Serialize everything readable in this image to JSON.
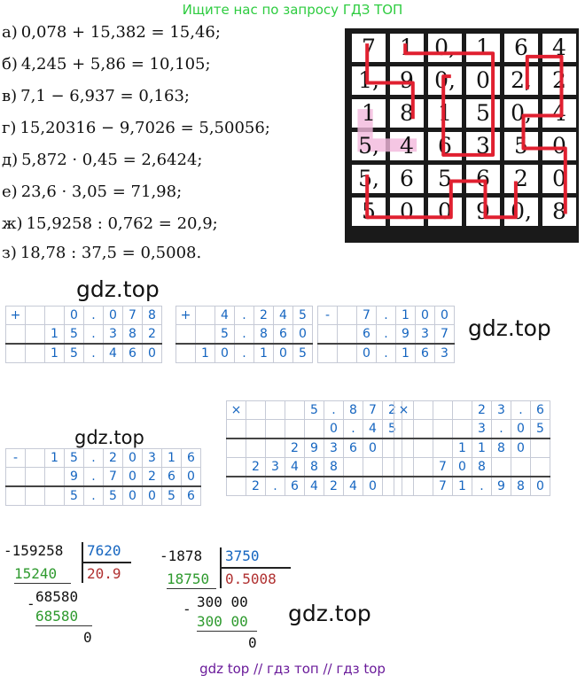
{
  "header_note": "Ищите нас по запросу ГДЗ ТОП",
  "equations": [
    {
      "label": "а)",
      "text": "0,078 + 15,382 = 15,46;"
    },
    {
      "label": "б)",
      "text": "4,245 + 5,86 = 10,105;"
    },
    {
      "label": "в)",
      "text": "7,1 − 6,937 = 0,163;"
    },
    {
      "label": "г)",
      "text": "15,20316 − 9,7026 = 5,50056;"
    },
    {
      "label": "д)",
      "text": "5,872 · 0,45 = 2,6424;"
    },
    {
      "label": "е)",
      "text": "23,6 · 3,05 = 71,98;"
    },
    {
      "label": "ж)",
      "text": "15,9258 : 0,762 = 20,9;"
    },
    {
      "label": "з)",
      "text": "18,78 : 37,5 = 0,5008."
    }
  ],
  "puzzle": {
    "rows": [
      [
        "7",
        "1",
        "0,",
        "1",
        "6",
        "4"
      ],
      [
        "1,",
        "9",
        "0,",
        "0",
        "2,",
        "2"
      ],
      [
        "1",
        "8",
        "1",
        "5",
        "0,",
        "4"
      ],
      [
        "5,",
        "4",
        "6",
        "3",
        "5",
        "0"
      ],
      [
        "5,",
        "6",
        "5",
        "6",
        "2",
        "0"
      ],
      [
        "5",
        "0",
        "0",
        "9",
        "0,",
        "8"
      ]
    ],
    "path_color": "#e02030",
    "highlight_color": "#f3b8dc"
  },
  "watermarks": [
    "gdz.top",
    "gdz.top",
    "gdz.top",
    "gdz.top"
  ],
  "column_ops": [
    {
      "op": "+",
      "rows": [
        [
          "",
          "",
          "0",
          ".",
          "0",
          "7",
          "8"
        ],
        [
          "",
          "1",
          "5",
          ".",
          "3",
          "8",
          "2"
        ],
        [
          "",
          "1",
          "5",
          ".",
          "4",
          "6",
          "0"
        ]
      ]
    },
    {
      "op": "+",
      "rows": [
        [
          "",
          "4",
          ".",
          "2",
          "4",
          "5"
        ],
        [
          "",
          "5",
          ".",
          "8",
          "6",
          "0"
        ],
        [
          "1",
          "0",
          ".",
          "1",
          "0",
          "5"
        ]
      ]
    },
    {
      "op": "-",
      "rows": [
        [
          "",
          "7",
          ".",
          "1",
          "0",
          "0"
        ],
        [
          "",
          "6",
          ".",
          "9",
          "3",
          "7"
        ],
        [
          "",
          "0",
          ".",
          "1",
          "6",
          "3"
        ]
      ]
    },
    {
      "op": "-",
      "rows": [
        [
          "",
          "1",
          "5",
          ".",
          "2",
          "0",
          "3",
          "1",
          "6"
        ],
        [
          "",
          "",
          "9",
          ".",
          "7",
          "0",
          "2",
          "6",
          "0"
        ],
        [
          "",
          "",
          "5",
          ".",
          "5",
          "0",
          "0",
          "5",
          "6"
        ]
      ]
    },
    {
      "op": "×",
      "rows": [
        [
          "",
          "",
          "",
          "5",
          ".",
          "8",
          "7",
          "2"
        ],
        [
          "",
          "",
          "",
          "",
          "0",
          ".",
          "4",
          "5"
        ],
        [
          "",
          "",
          "2",
          "9",
          "3",
          "6",
          "0",
          ""
        ],
        [
          "2",
          "3",
          "4",
          "8",
          "8",
          "",
          "",
          ""
        ],
        [
          "2",
          ".",
          "6",
          "4",
          "2",
          "4",
          "0",
          ""
        ]
      ]
    },
    {
      "op": "×",
      "rows": [
        [
          "",
          "",
          "",
          "2",
          "3",
          ".",
          "6"
        ],
        [
          "",
          "",
          "",
          "3",
          ".",
          "0",
          "5"
        ],
        [
          "",
          "",
          "1",
          "1",
          "8",
          "0",
          ""
        ],
        [
          "",
          "7",
          "0",
          "8",
          "",
          "",
          ""
        ],
        [
          "",
          "7",
          "1",
          ".",
          "9",
          "8",
          "0"
        ]
      ]
    }
  ],
  "division1": {
    "minuend": "-159258",
    "divisor": "7620",
    "sub1": "15240",
    "quotient": "20.9",
    "rem1": "68580",
    "sub2": "68580",
    "result": "0"
  },
  "division2": {
    "minuend": "-1878",
    "divisor": "3750",
    "sub1": "18750",
    "quotient": "0.5008",
    "rem1": "300 00",
    "sub2": "300 00",
    "result": "0"
  },
  "footer": "gdz top  //  гдз топ  //  гдз top"
}
